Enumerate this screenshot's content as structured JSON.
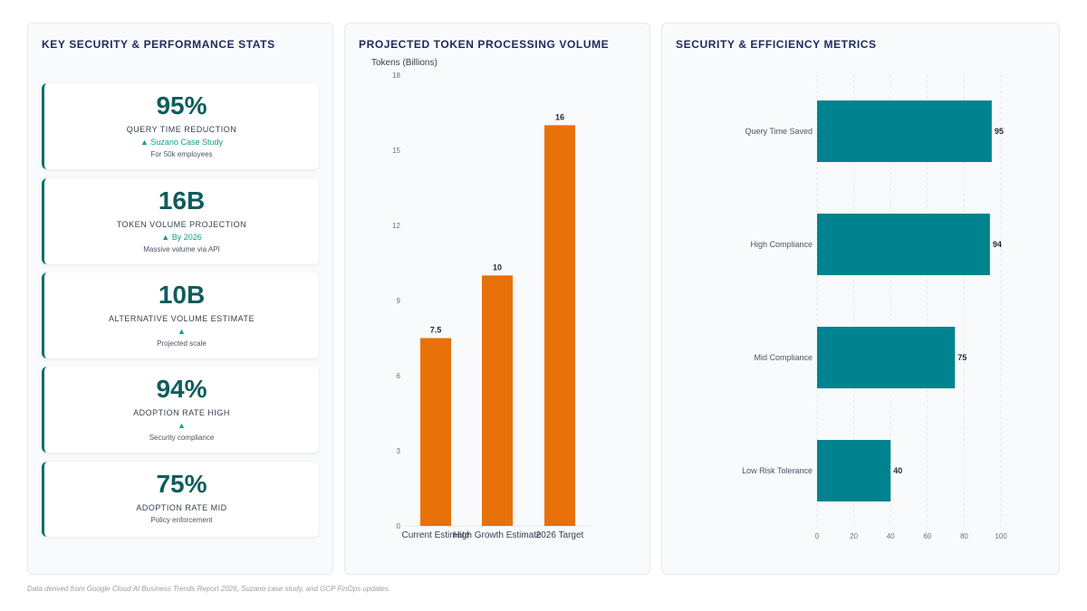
{
  "stats_panel": {
    "title": "KEY SECURITY & PERFORMANCE STATS",
    "cards": [
      {
        "value": "95%",
        "label": "QUERY TIME REDUCTION",
        "trend": "▲ Suzano Case Study",
        "sub": "For 50k employees"
      },
      {
        "value": "16B",
        "label": "TOKEN VOLUME PROJECTION",
        "trend": "▲ By 2026",
        "sub": "Massive volume via API"
      },
      {
        "value": "10B",
        "label": "ALTERNATIVE VOLUME ESTIMATE",
        "trend": "▲",
        "sub": "Projected scale"
      },
      {
        "value": "94%",
        "label": "ADOPTION RATE HIGH",
        "trend": "▲",
        "sub": "Security compliance"
      },
      {
        "value": "75%",
        "label": "ADOPTION RATE MID",
        "trend": "",
        "sub": "Policy enforcement"
      }
    ]
  },
  "colors": {
    "bar_orange": "#e8710a",
    "bar_teal": "#00838f",
    "title_navy": "#1e2a5a",
    "stat_teal": "#0f5c5c",
    "trend_green": "#10a37f"
  },
  "chart_data": [
    {
      "type": "bar",
      "title": "PROJECTED TOKEN PROCESSING VOLUME",
      "ylabel": "Tokens (Billions)",
      "xlabel": "",
      "categories": [
        "Current Estimate",
        "High Growth Estimate",
        "2026 Target"
      ],
      "values": [
        7.5,
        10,
        16
      ],
      "data_labels": [
        "7.5",
        "10",
        "16"
      ],
      "ylim": [
        0,
        18
      ],
      "yticks": [
        0,
        3,
        6,
        9,
        12,
        15,
        18
      ],
      "grid": false,
      "color": "#e8710a"
    },
    {
      "type": "bar",
      "orientation": "horizontal",
      "title": "SECURITY & EFFICIENCY METRICS",
      "xlabel": "",
      "ylabel": "",
      "categories": [
        "Query Time Saved",
        "High Compliance",
        "Mid Compliance",
        "Low Risk Tolerance"
      ],
      "values": [
        95,
        94,
        75,
        40
      ],
      "data_labels": [
        "95",
        "94",
        "75",
        "40"
      ],
      "xlim": [
        0,
        100
      ],
      "xticks": [
        0,
        20,
        40,
        60,
        80,
        100
      ],
      "grid": true,
      "color": "#00838f"
    }
  ],
  "footer": {
    "note": "Data derived from Google Cloud AI Business Trends Report 2026, Suzano case study, and GCP FinOps updates."
  }
}
